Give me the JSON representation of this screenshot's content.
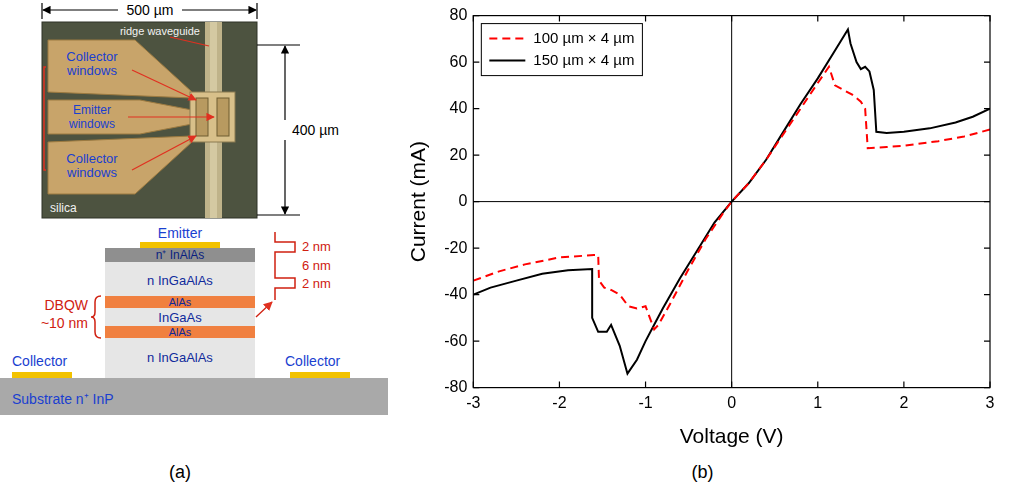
{
  "chart_data": {
    "type": "line",
    "x_label": "Voltage (V)",
    "y_label": "Current (mA)",
    "xlim": [
      -3,
      3
    ],
    "xticks": [
      -3,
      -2,
      -1,
      0,
      1,
      2,
      3
    ],
    "ylim": [
      -80,
      80
    ],
    "yticks": [
      -80,
      -60,
      -40,
      -20,
      0,
      20,
      40,
      60,
      80
    ],
    "grid": false,
    "legend": "upper left",
    "series": [
      {
        "name": "100 µm × 4 µm",
        "color": "#ff0000",
        "line_style": "dashed",
        "marker": "none",
        "x": [
          -3,
          -2.7,
          -2.4,
          -2.0,
          -1.6,
          -1.55,
          -1.54,
          -1.48,
          -1.4,
          -1.3,
          -1.2,
          -1.1,
          -1.0,
          -0.95,
          -0.9,
          -0.85,
          -0.7,
          -0.5,
          -0.3,
          -0.1,
          0,
          0.2,
          0.4,
          0.6,
          0.8,
          1.0,
          1.13,
          1.2,
          1.3,
          1.4,
          1.5,
          1.55,
          1.58,
          1.8,
          2.0,
          2.4,
          2.7,
          3.0
        ],
        "values": [
          -34,
          -30,
          -27,
          -24,
          -23,
          -23,
          -34,
          -37,
          -38,
          -40,
          -45,
          -46,
          -45,
          -50,
          -55,
          -53,
          -43,
          -29,
          -16,
          -5,
          0,
          8,
          18,
          29,
          40,
          51,
          58,
          50,
          48,
          46,
          43,
          40,
          23,
          23.5,
          24,
          26,
          28,
          31
        ]
      },
      {
        "name": "150 µm × 4 µm",
        "color": "#000000",
        "line_style": "solid",
        "marker": "none",
        "x": [
          -3,
          -2.8,
          -2.5,
          -2.2,
          -1.9,
          -1.62,
          -1.62,
          -1.55,
          -1.45,
          -1.4,
          -1.3,
          -1.21,
          -1.1,
          -1.0,
          -0.9,
          -0.8,
          -0.6,
          -0.4,
          -0.2,
          0,
          0.2,
          0.4,
          0.6,
          0.8,
          1.0,
          1.2,
          1.35,
          1.38,
          1.45,
          1.5,
          1.55,
          1.6,
          1.65,
          1.68,
          1.8,
          2.0,
          2.3,
          2.6,
          2.8,
          3.0
        ],
        "values": [
          -40,
          -37,
          -34,
          -31,
          -29.5,
          -29,
          -50,
          -56,
          -56,
          -53,
          -62,
          -74,
          -68,
          -60,
          -53,
          -46,
          -33,
          -21,
          -9,
          0,
          8,
          18,
          30,
          42,
          53,
          65,
          74,
          68,
          60,
          57,
          58,
          56,
          48,
          30,
          29.5,
          30,
          31.5,
          34,
          36.5,
          40
        ]
      }
    ]
  },
  "figure": {
    "panel_labels": [
      "(a)",
      "(b)"
    ],
    "micrograph": {
      "scale_x": "500 µm",
      "scale_y": "400 µm",
      "ridge": "ridge waveguide",
      "windows": [
        "Collector windows",
        "Emitter windows",
        "Collector windows"
      ],
      "substrate": "silica"
    },
    "cross_section": {
      "emitter": "Emitter",
      "layers": [
        "n⁺ InAlAs",
        "n InGaAlAs",
        "AlAs",
        "InGaAs",
        "AlAs",
        "n InGaAlAs"
      ],
      "collectors": [
        "Collector",
        "Collector"
      ],
      "substrate": "Substrate n⁺ InP",
      "dbqw": "DBQW",
      "dbqw_size": "~10 nm",
      "well_sizes": [
        "2 nm",
        "6 nm",
        "2 nm"
      ]
    }
  }
}
